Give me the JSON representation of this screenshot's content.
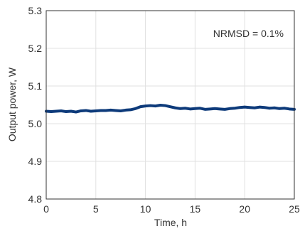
{
  "chart_data": {
    "type": "line",
    "title": "",
    "xlabel": "Time, h",
    "ylabel": "Output power, W",
    "xlim": [
      0,
      25
    ],
    "ylim": [
      4.8,
      5.3
    ],
    "xticks": [
      "0",
      "5",
      "10",
      "15",
      "20",
      "25"
    ],
    "yticks": [
      "4.8",
      "4.9",
      "5.0",
      "5.1",
      "5.2",
      "5.3"
    ],
    "grid": true,
    "annotation": "NRMSD = 0.1%",
    "line_color": "#0d3a7a",
    "series": [
      {
        "x": [
          0,
          0.5,
          1,
          1.5,
          2,
          2.5,
          3,
          3.5,
          4,
          4.5,
          5,
          5.5,
          6,
          6.5,
          7,
          7.5,
          8,
          8.5,
          9,
          9.5,
          10,
          10.5,
          11,
          11.5,
          12,
          12.5,
          13,
          13.5,
          14,
          14.5,
          15,
          15.5,
          16,
          16.5,
          17,
          17.5,
          18,
          18.5,
          19,
          19.5,
          20,
          20.5,
          21,
          21.5,
          22,
          22.5,
          23,
          23.5,
          24,
          24.5,
          25
        ],
        "values": [
          5.033,
          5.032,
          5.033,
          5.034,
          5.032,
          5.033,
          5.031,
          5.034,
          5.035,
          5.033,
          5.034,
          5.035,
          5.035,
          5.036,
          5.035,
          5.034,
          5.036,
          5.037,
          5.04,
          5.045,
          5.047,
          5.048,
          5.047,
          5.049,
          5.048,
          5.045,
          5.042,
          5.04,
          5.041,
          5.039,
          5.04,
          5.041,
          5.038,
          5.039,
          5.04,
          5.039,
          5.038,
          5.04,
          5.041,
          5.043,
          5.044,
          5.043,
          5.042,
          5.044,
          5.043,
          5.041,
          5.042,
          5.04,
          5.041,
          5.039,
          5.038
        ]
      }
    ]
  }
}
